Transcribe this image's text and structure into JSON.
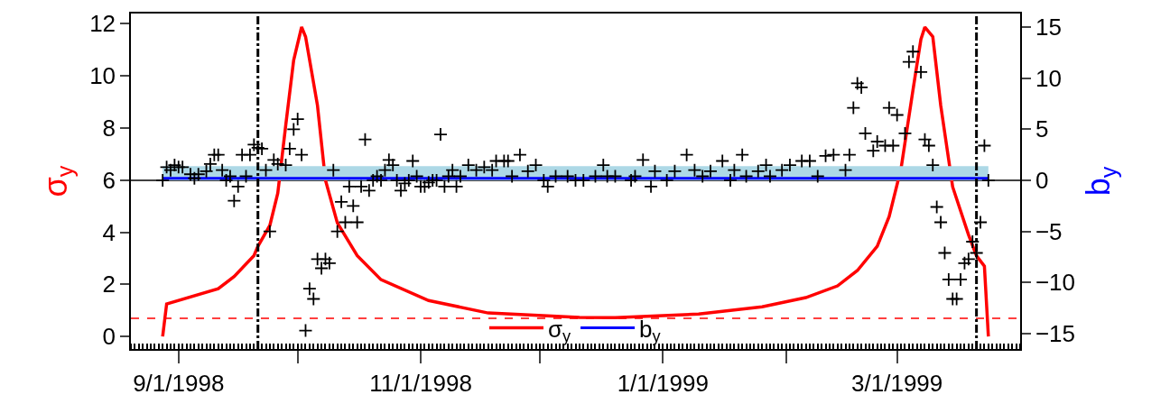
{
  "chart_data": {
    "type": "line",
    "ylabel": "σ$_{y}$",
    "y2label": "b$_{y}$",
    "xlim": [
      "1998-08-20",
      "1999-04-01"
    ],
    "xticks": [
      {
        "value": "1998-09-01",
        "label": "9/1/1998"
      },
      {
        "value": "1998-10-01",
        "label": null
      },
      {
        "value": "1998-11-01",
        "label": "11/1/1998"
      },
      {
        "value": "1998-12-01",
        "label": null
      },
      {
        "value": "1999-01-01",
        "label": "1/1/1999"
      },
      {
        "value": "1999-02-01",
        "label": null
      },
      {
        "value": "1999-03-01",
        "label": "3/1/1999"
      }
    ],
    "ylim": [
      -0.48,
      12.39
    ],
    "yticks": [
      0,
      2,
      4,
      6,
      8,
      10,
      12
    ],
    "y2lim": [
      -16.5,
      16.33
    ],
    "y2ticks": [
      {
        "value": -15,
        "label": "−15"
      },
      {
        "value": -10,
        "label": "−10"
      },
      {
        "value": -5,
        "label": "−5"
      },
      0,
      5,
      10,
      15
    ],
    "grid": false,
    "legend": "bottom",
    "ref_lines": [
      {
        "axis": "y",
        "value": 0.7,
        "color": "#ff0000",
        "line_style": "dashed"
      },
      {
        "axis": "y2",
        "value": 0,
        "color": "#000000",
        "line_style": "solid"
      },
      {
        "axis": "x",
        "value": "1998-09-21",
        "color": "#000000",
        "line_style": "dashdot"
      },
      {
        "axis": "x",
        "value": "1999-03-21",
        "color": "#000000",
        "line_style": "dashdot"
      }
    ],
    "series": [
      {
        "name": "σ$_{y}$",
        "color": "#ff0000",
        "x": [
          "1998-08-28",
          "1998-08-29",
          "1998-09-11",
          "1998-09-15",
          "1998-09-20",
          "1998-09-21",
          "1998-09-24",
          "1998-09-26",
          "1998-09-28",
          "1998-09-30",
          "1998-10-02",
          "1998-10-03",
          "1998-10-06",
          "1998-10-08",
          "1998-10-11",
          "1998-10-16",
          "1998-10-22",
          "1998-11-03",
          "1998-11-18",
          "1998-12-11",
          "1998-12-20",
          "1999-01-10",
          "1999-01-26",
          "1999-02-06",
          "1999-02-14",
          "1999-02-19",
          "1999-02-24",
          "1999-02-27",
          "1999-03-02",
          "1999-03-05",
          "1999-03-07",
          "1999-03-08",
          "1999-03-10",
          "1999-03-12",
          "1999-03-15",
          "1999-03-19",
          "1999-03-21",
          "1999-03-23",
          "1999-03-24"
        ],
        "values": [
          0,
          1.25,
          1.83,
          2.3,
          3.1,
          3.46,
          4.26,
          5.5,
          8.1,
          10.6,
          11.87,
          11.5,
          8.86,
          6.0,
          4.36,
          3.1,
          2.18,
          1.38,
          0.9,
          0.73,
          0.72,
          0.86,
          1.14,
          1.49,
          1.94,
          2.53,
          3.46,
          4.6,
          6.44,
          9.45,
          11.4,
          11.87,
          11.5,
          8.86,
          5.74,
          3.9,
          3.1,
          2.7,
          0
        ]
      },
      {
        "name": "b$_{y}$",
        "type": "line",
        "axis": "y2",
        "color": "#0000ff",
        "x": [
          "1998-08-28",
          "1999-03-24"
        ],
        "values": [
          0.2,
          0.2
        ],
        "lower": [
          0,
          0
        ],
        "upper": [
          1.4,
          1.4
        ]
      },
      {
        "type": "scatter",
        "axis": "y2",
        "color": "#000000",
        "marker": "cross",
        "x": [
          "1998-08-28",
          "1998-08-29",
          "1998-08-30",
          "1998-08-31",
          "1998-09-01",
          "1998-09-02",
          "1998-09-04",
          "1998-09-05",
          "1998-09-06",
          "1998-09-08",
          "1998-09-09",
          "1998-09-10",
          "1998-09-11",
          "1998-09-12",
          "1998-09-13",
          "1998-09-14",
          "1998-09-15",
          "1998-09-16",
          "1998-09-17",
          "1998-09-18",
          "1998-09-19",
          "1998-09-20",
          "1998-09-21",
          "1998-09-22",
          "1998-09-23",
          "1998-09-24",
          "1998-09-25",
          "1998-09-26",
          "1998-09-28",
          "1998-09-29",
          "1998-09-30",
          "1998-10-01",
          "1998-10-02",
          "1998-10-03",
          "1998-10-04",
          "1998-10-05",
          "1998-10-06",
          "1998-10-07",
          "1998-10-08",
          "1998-10-09",
          "1998-10-10",
          "1998-10-11",
          "1998-10-12",
          "1998-10-13",
          "1998-10-14",
          "1998-10-15",
          "1998-10-16",
          "1998-10-17",
          "1998-10-18",
          "1998-10-19",
          "1998-10-20",
          "1998-10-21",
          "1998-10-22",
          "1998-10-23",
          "1998-10-24",
          "1998-10-25",
          "1998-10-26",
          "1998-10-27",
          "1998-10-28",
          "1998-10-29",
          "1998-10-30",
          "1998-10-31",
          "1998-11-01",
          "1998-11-02",
          "1998-11-03",
          "1998-11-04",
          "1998-11-05",
          "1998-11-06",
          "1998-11-07",
          "1998-11-08",
          "1998-11-09",
          "1998-11-10",
          "1998-11-11",
          "1998-11-13",
          "1998-11-15",
          "1998-11-17",
          "1998-11-19",
          "1998-11-20",
          "1998-11-22",
          "1998-11-23",
          "1998-11-24",
          "1998-11-26",
          "1998-11-28",
          "1998-11-30",
          "1998-12-02",
          "1998-12-03",
          "1998-12-05",
          "1998-12-08",
          "1998-12-10",
          "1998-12-12",
          "1998-12-15",
          "1998-12-17",
          "1998-12-18",
          "1998-12-20",
          "1998-12-24",
          "1998-12-25",
          "1998-12-27",
          "1998-12-29",
          "1998-12-30",
          "1999-01-02",
          "1999-01-04",
          "1999-01-07",
          "1999-01-09",
          "1999-01-11",
          "1999-01-13",
          "1999-01-16",
          "1999-01-18",
          "1999-01-19",
          "1999-01-21",
          "1999-01-22",
          "1999-01-25",
          "1999-01-27",
          "1999-01-28",
          "1999-01-31",
          "1999-02-02",
          "1999-02-05",
          "1999-02-07",
          "1999-02-09",
          "1999-02-11",
          "1999-02-13",
          "1999-02-16",
          "1999-02-17",
          "1999-02-18",
          "1999-02-19",
          "1999-02-20",
          "1999-02-21",
          "1999-02-23",
          "1999-02-24",
          "1999-02-26",
          "1999-02-27",
          "1999-02-28",
          "1999-03-01",
          "1999-03-03",
          "1999-03-04",
          "1999-03-05",
          "1999-03-07",
          "1999-03-08",
          "1999-03-09",
          "1999-03-10",
          "1999-03-11",
          "1999-03-12",
          "1999-03-13",
          "1999-03-14",
          "1999-03-15",
          "1999-03-16",
          "1999-03-17",
          "1999-03-18",
          "1999-03-19",
          "1999-03-20",
          "1999-03-21",
          "1999-03-22",
          "1999-03-23",
          "1999-03-24"
        ],
        "values": [
          0,
          1.3,
          1.0,
          1.5,
          1.3,
          1.3,
          0.6,
          0.2,
          0.6,
          0.9,
          1.6,
          2.5,
          2.5,
          1.0,
          0,
          0.4,
          -2.0,
          -0.6,
          2.5,
          0.4,
          2.5,
          3.5,
          3.2,
          3.1,
          1.0,
          -5.0,
          2.0,
          1.6,
          1.5,
          3.1,
          5.0,
          6.0,
          2.5,
          -14.7,
          -10.6,
          -11.6,
          -7.7,
          -8.6,
          -7.7,
          -8.1,
          1.0,
          -5.0,
          -2.1,
          -4.1,
          -0.6,
          -2.5,
          -4.1,
          -0.6,
          4.0,
          -1.0,
          0,
          0.4,
          0,
          1.0,
          2.0,
          1.5,
          0,
          -1.0,
          -0.3,
          0,
          1.9,
          0.4,
          -0.6,
          -0.6,
          -0.2,
          0,
          0,
          4.5,
          -0.6,
          0.4,
          1.0,
          -0.6,
          0.4,
          1.5,
          1.0,
          1.3,
          1.0,
          1.9,
          1.9,
          1.9,
          0.4,
          2.5,
          0.9,
          1.5,
          0,
          -0.6,
          0.4,
          0.4,
          0,
          0,
          0.4,
          1.5,
          0.4,
          0.4,
          0,
          0.4,
          2.0,
          -0.6,
          0.9,
          0,
          0.9,
          2.5,
          1.0,
          0.4,
          0.9,
          1.9,
          0,
          1.0,
          2.5,
          0.4,
          0.9,
          1.5,
          0.4,
          1.0,
          1.5,
          1.9,
          1.9,
          0.4,
          2.4,
          2.5,
          1.0,
          2.5,
          7.1,
          9.5,
          9.1,
          4.6,
          2.9,
          3.8,
          3.4,
          7.1,
          3.4,
          6.4,
          4.6,
          11.6,
          12.6,
          10.6,
          4.0,
          3.4,
          1.5,
          -2.6,
          -4.1,
          -7.1,
          -9.7,
          -11.6,
          -11.6,
          -9.7,
          -8.1,
          -7.7,
          -6.0,
          -7.1,
          -4.1,
          3.4,
          0
        ]
      }
    ]
  }
}
